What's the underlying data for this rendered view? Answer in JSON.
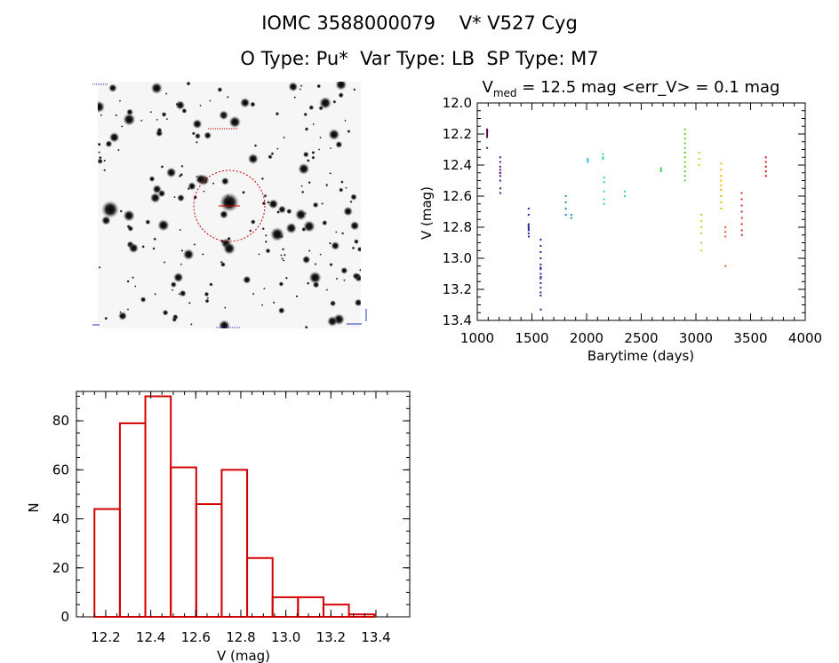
{
  "header": {
    "line1": "IOMC 3588000079    V* V527 Cyg",
    "line2": "O Type: Pu*  Var Type: LB  SP Type: M7"
  },
  "image_panel": {
    "marker_color": "#cc0000"
  },
  "chart_data": [
    {
      "type": "scatter",
      "title_prefix": "V",
      "title_subscript": "med",
      "title_rest": " = 12.5 mag <err_V> = 0.1 mag",
      "xlabel": "Barytime (days)",
      "ylabel": "V (mag)",
      "xlim": [
        1000,
        4000
      ],
      "ylim": [
        13.4,
        12.0
      ],
      "y_inverted": true,
      "xticks": [
        1000,
        1500,
        2000,
        2500,
        3000,
        3500,
        4000
      ],
      "yticks": [
        12.0,
        12.2,
        12.4,
        12.6,
        12.8,
        13.0,
        13.2,
        13.4
      ],
      "ytick_labels": [
        "12.0",
        "12.2",
        "12.4",
        "12.6",
        "12.8",
        "13.0",
        "13.2",
        "13.4"
      ],
      "grid": false,
      "series": [
        {
          "color": "#5a0d5a",
          "points": [
            [
              1090,
              12.17
            ],
            [
              1090,
              12.18
            ],
            [
              1090,
              12.19
            ],
            [
              1090,
              12.2
            ],
            [
              1090,
              12.21
            ],
            [
              1090,
              12.22
            ],
            [
              1091,
              12.18
            ],
            [
              1090,
              12.29
            ]
          ]
        },
        {
          "color": "#4b0f8c",
          "points": [
            [
              1210,
              12.35
            ],
            [
              1210,
              12.38
            ],
            [
              1210,
              12.41
            ],
            [
              1210,
              12.43
            ],
            [
              1210,
              12.45
            ],
            [
              1210,
              12.47
            ],
            [
              1210,
              12.5
            ],
            [
              1211,
              12.55
            ],
            [
              1211,
              12.58
            ],
            [
              1209,
              12.45
            ]
          ]
        },
        {
          "color": "#2a2aa8",
          "points": [
            [
              1470,
              12.68
            ],
            [
              1470,
              12.72
            ],
            [
              1470,
              12.78
            ],
            [
              1470,
              12.8
            ],
            [
              1470,
              12.82
            ],
            [
              1470,
              12.84
            ],
            [
              1471,
              12.86
            ],
            [
              1469,
              12.79
            ],
            [
              1470,
              12.81
            ]
          ]
        },
        {
          "color": "#23239c",
          "points": [
            [
              1580,
              12.88
            ],
            [
              1580,
              12.92
            ],
            [
              1580,
              12.96
            ],
            [
              1580,
              13.0
            ],
            [
              1580,
              13.04
            ],
            [
              1580,
              13.07
            ],
            [
              1580,
              13.1
            ],
            [
              1580,
              13.13
            ],
            [
              1580,
              13.16
            ],
            [
              1580,
              13.19
            ],
            [
              1580,
              13.22
            ],
            [
              1580,
              13.24
            ],
            [
              1581,
              13.33
            ],
            [
              1579,
              13.06
            ],
            [
              1581,
              13.12
            ]
          ]
        },
        {
          "color": "#1f8fc8",
          "points": [
            [
              1810,
              12.6
            ],
            [
              1810,
              12.64
            ],
            [
              1810,
              12.68
            ],
            [
              1810,
              12.72
            ],
            [
              1860,
              12.72
            ],
            [
              1860,
              12.74
            ]
          ]
        },
        {
          "color": "#2dc9d6",
          "points": [
            [
              2010,
              12.36
            ],
            [
              2010,
              12.38
            ],
            [
              2011,
              12.37
            ]
          ]
        },
        {
          "color": "#2dd6a8",
          "points": [
            [
              2150,
              12.33
            ],
            [
              2150,
              12.36
            ],
            [
              2151,
              12.35
            ],
            [
              2160,
              12.48
            ],
            [
              2160,
              12.51
            ],
            [
              2160,
              12.57
            ],
            [
              2160,
              12.62
            ],
            [
              2160,
              12.65
            ],
            [
              2350,
              12.57
            ],
            [
              2350,
              12.6
            ]
          ]
        },
        {
          "color": "#3fd64f",
          "points": [
            [
              2680,
              12.42
            ],
            [
              2680,
              12.44
            ],
            [
              2681,
              12.43
            ]
          ]
        },
        {
          "color": "#5ad620",
          "points": [
            [
              2900,
              12.17
            ],
            [
              2900,
              12.2
            ],
            [
              2900,
              12.23
            ],
            [
              2900,
              12.26
            ],
            [
              2900,
              12.29
            ],
            [
              2900,
              12.32
            ],
            [
              2900,
              12.35
            ],
            [
              2900,
              12.38
            ],
            [
              2900,
              12.41
            ],
            [
              2900,
              12.44
            ],
            [
              2900,
              12.47
            ],
            [
              2900,
              12.5
            ]
          ]
        },
        {
          "color": "#a8e01a",
          "points": [
            [
              3030,
              12.32
            ],
            [
              3030,
              12.36
            ],
            [
              3030,
              12.4
            ],
            [
              3050,
              12.72
            ],
            [
              3050,
              12.76
            ],
            [
              3050,
              12.8
            ],
            [
              3050,
              12.84
            ],
            [
              3050,
              12.9
            ],
            [
              3051,
              12.95
            ]
          ]
        },
        {
          "color": "#f2b705",
          "points": [
            [
              3230,
              12.39
            ],
            [
              3230,
              12.43
            ],
            [
              3230,
              12.47
            ],
            [
              3230,
              12.5
            ],
            [
              3230,
              12.53
            ],
            [
              3230,
              12.56
            ],
            [
              3230,
              12.6
            ],
            [
              3230,
              12.64
            ],
            [
              3231,
              12.68
            ]
          ]
        },
        {
          "color": "#e0601a",
          "points": [
            [
              3270,
              12.8
            ],
            [
              3270,
              12.83
            ],
            [
              3270,
              12.86
            ],
            [
              3271,
              13.05
            ]
          ]
        },
        {
          "color": "#c8321e",
          "points": [
            [
              3420,
              12.62
            ],
            [
              3420,
              12.66
            ],
            [
              3420,
              12.7
            ],
            [
              3420,
              12.74
            ],
            [
              3420,
              12.78
            ],
            [
              3420,
              12.82
            ],
            [
              3421,
              12.85
            ],
            [
              3419,
              12.58
            ]
          ]
        },
        {
          "color": "#d21414",
          "points": [
            [
              3640,
              12.35
            ],
            [
              3640,
              12.38
            ],
            [
              3640,
              12.41
            ],
            [
              3640,
              12.44
            ],
            [
              3641,
              12.47
            ]
          ]
        }
      ]
    },
    {
      "type": "bar",
      "style": "histogram-outline",
      "xlabel": "V (mag)",
      "ylabel": "N",
      "xlim": [
        12.07,
        13.55
      ],
      "ylim": [
        0,
        92
      ],
      "xticks": [
        12.2,
        12.4,
        12.6,
        12.8,
        13.0,
        13.2,
        13.4
      ],
      "xtick_labels": [
        "12.2",
        "12.4",
        "12.6",
        "12.8",
        "13.0",
        "13.2",
        "13.4"
      ],
      "yticks": [
        0,
        20,
        40,
        60,
        80
      ],
      "bin_width": 0.113,
      "bin_left_edges": [
        12.15,
        12.263,
        12.376,
        12.489,
        12.602,
        12.715,
        12.828,
        12.941,
        13.054,
        13.167,
        13.28
      ],
      "values": [
        44,
        79,
        90,
        61,
        46,
        60,
        24,
        8,
        8,
        5,
        1
      ],
      "bar_color": "#d40000"
    }
  ]
}
